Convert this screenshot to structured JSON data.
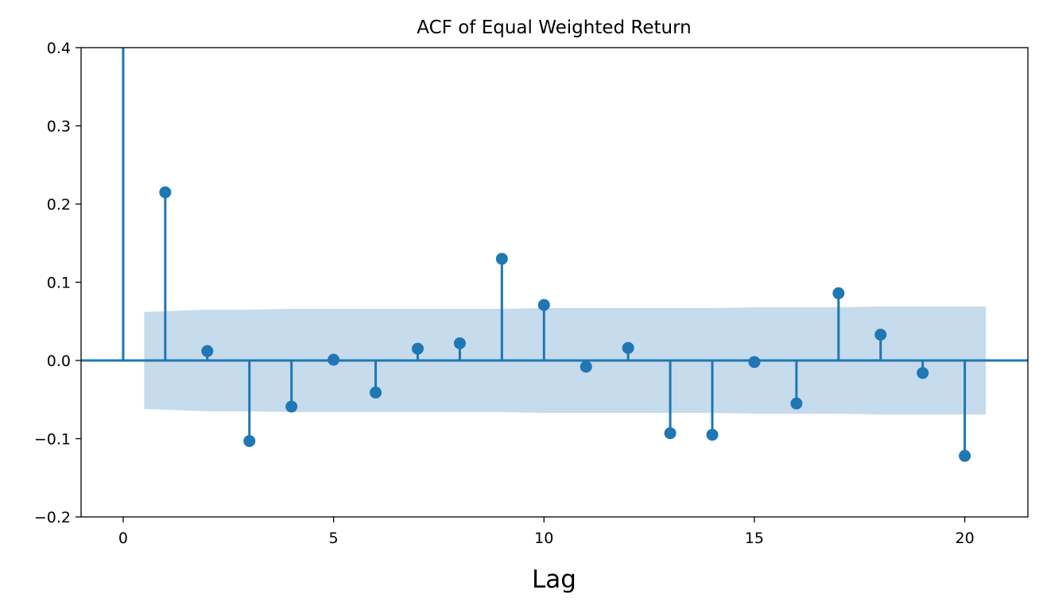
{
  "chart_data": {
    "type": "stem",
    "title": "ACF of Equal Weighted Return",
    "xlabel": "Lag",
    "ylabel": "",
    "xlim": [
      -1,
      21.5
    ],
    "ylim": [
      -0.2,
      0.4
    ],
    "xticks": [
      0,
      5,
      10,
      15,
      20
    ],
    "yticks": [
      -0.2,
      -0.1,
      0.0,
      0.1,
      0.2,
      0.3,
      0.4
    ],
    "ytick_labels": [
      "−0.2",
      "−0.1",
      "0.0",
      "0.1",
      "0.2",
      "0.3",
      "0.4"
    ],
    "grid": false,
    "lags": [
      0,
      1,
      2,
      3,
      4,
      5,
      6,
      7,
      8,
      9,
      10,
      11,
      12,
      13,
      14,
      15,
      16,
      17,
      18,
      19,
      20
    ],
    "values": [
      1.0,
      0.215,
      0.012,
      -0.103,
      -0.059,
      0.001,
      -0.041,
      0.015,
      0.022,
      0.13,
      0.071,
      -0.008,
      0.016,
      -0.093,
      -0.095,
      -0.002,
      -0.055,
      0.086,
      0.033,
      -0.016,
      -0.122
    ],
    "confidence_band": {
      "x": [
        0.5,
        1,
        2,
        3,
        4,
        5,
        6,
        7,
        8,
        9,
        10,
        11,
        12,
        13,
        14,
        15,
        16,
        17,
        18,
        19,
        20,
        20.5
      ],
      "upper": [
        0.062,
        0.063,
        0.065,
        0.065,
        0.066,
        0.066,
        0.066,
        0.066,
        0.066,
        0.066,
        0.067,
        0.067,
        0.067,
        0.067,
        0.067,
        0.068,
        0.068,
        0.068,
        0.069,
        0.069,
        0.069,
        0.069
      ],
      "lower": [
        -0.062,
        -0.063,
        -0.065,
        -0.065,
        -0.066,
        -0.066,
        -0.066,
        -0.066,
        -0.066,
        -0.066,
        -0.067,
        -0.067,
        -0.067,
        -0.067,
        -0.067,
        -0.068,
        -0.068,
        -0.068,
        -0.069,
        -0.069,
        -0.069,
        -0.069
      ]
    },
    "colors": {
      "stem": "#1f77b4",
      "band": "#c6dbec",
      "axis": "#000000"
    }
  }
}
